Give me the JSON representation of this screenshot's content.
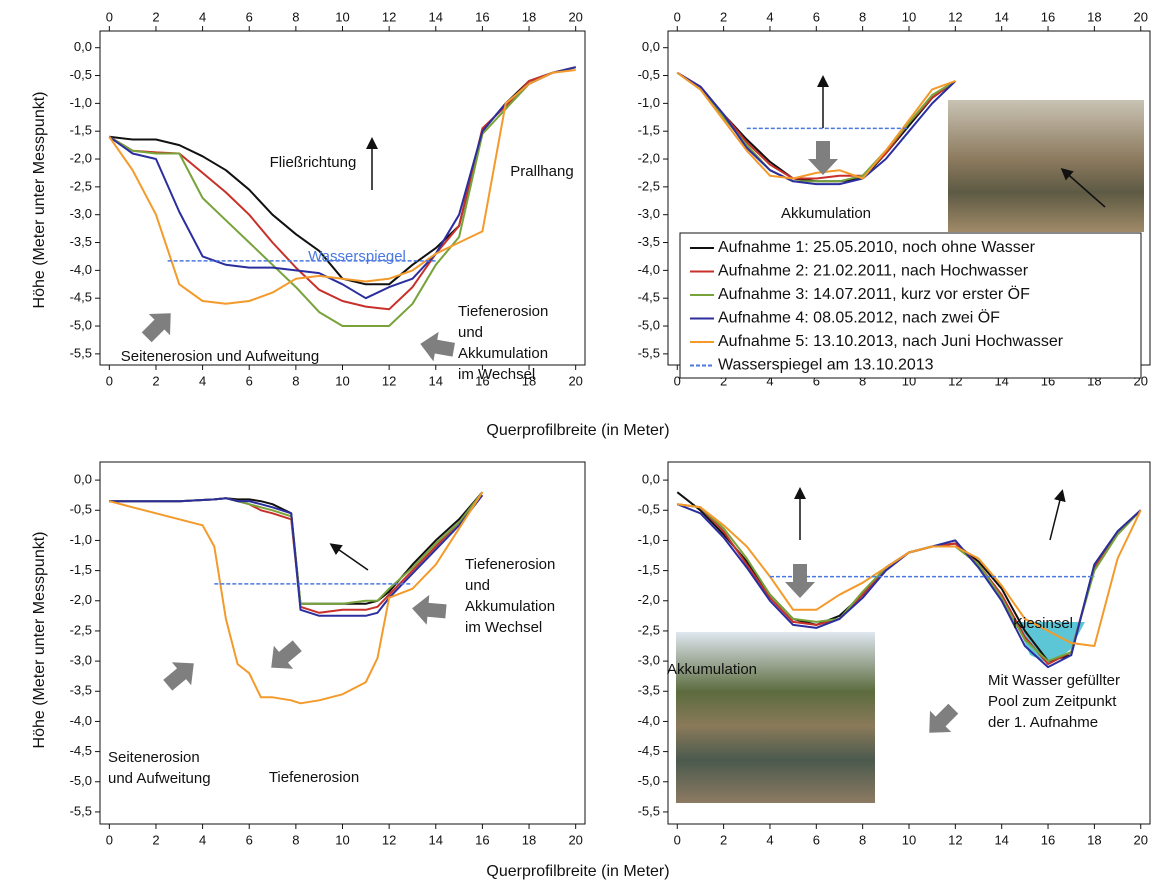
{
  "chart_data": [
    {
      "type": "line",
      "xlabel": "Querprofilbreite (in Meter)",
      "ylabel": "Höhe (Meter unter Messpunkt)",
      "x_axis_top": true,
      "x": [
        0,
        1,
        2,
        3,
        4,
        5,
        6,
        7,
        8,
        9,
        10,
        11,
        12,
        13,
        14,
        15,
        16,
        17,
        18,
        19,
        20
      ],
      "series": [
        {
          "color": "#111111",
          "values": [
            -1.6,
            -1.65,
            -1.65,
            -1.75,
            -1.95,
            -2.2,
            -2.55,
            -3.0,
            -3.35,
            -3.65,
            -4.15,
            -4.25,
            -4.25,
            -3.9,
            -3.6,
            -3.2,
            -1.5,
            -1.0,
            -0.6,
            -0.45,
            -0.35
          ]
        },
        {
          "color": "#c8302a",
          "values": [
            -1.6,
            -1.85,
            -1.88,
            -1.9,
            -2.25,
            -2.6,
            -3.0,
            -3.5,
            -3.95,
            -4.35,
            -4.55,
            -4.65,
            -4.7,
            -4.3,
            -3.7,
            -3.2,
            -1.45,
            -1.05,
            -0.6,
            -0.45,
            -0.35
          ]
        },
        {
          "color": "#77a33a",
          "values": [
            -1.6,
            -1.85,
            -1.9,
            -1.9,
            -2.7,
            -3.1,
            -3.5,
            -3.9,
            -4.3,
            -4.75,
            -5.0,
            -5.0,
            -5.0,
            -4.6,
            -3.9,
            -3.4,
            -1.55,
            -1.1,
            -0.65,
            -0.45,
            -0.35
          ]
        },
        {
          "color": "#2b2e9e",
          "values": [
            -1.6,
            -1.9,
            -2.0,
            -2.95,
            -3.75,
            -3.9,
            -3.95,
            -3.95,
            -4.0,
            -4.05,
            -4.25,
            -4.5,
            -4.3,
            -4.15,
            -3.7,
            -3.0,
            -1.5,
            -1.0,
            -0.65,
            -0.45,
            -0.35
          ]
        },
        {
          "color": "#f39a2b",
          "values": [
            -1.6,
            -2.2,
            -3.0,
            -4.25,
            -4.55,
            -4.6,
            -4.55,
            -4.4,
            -4.15,
            -4.1,
            -4.15,
            -4.2,
            -4.15,
            -4.0,
            -3.7,
            -3.5,
            -3.3,
            -1.0,
            -0.65,
            -0.45,
            -0.4
          ]
        },
        {
          "color": "#4a78e0",
          "dashed": true,
          "x": [
            2.5,
            14
          ],
          "values": [
            -3.83,
            -3.83
          ]
        }
      ],
      "annotations": [
        "Fließrichtung",
        "Prallhang",
        "Wasserspiegel",
        "Seitenerosion und Aufweitung",
        [
          "Tiefenerosion",
          "und",
          "Akkumulation",
          "im Wechsel"
        ]
      ],
      "xlim": [
        -0.4,
        20.4
      ],
      "ylim": [
        -5.7,
        0.3
      ],
      "xticks": [
        0,
        2,
        4,
        6,
        8,
        10,
        12,
        14,
        16,
        18,
        20
      ],
      "yticks": [
        {
          "value": 0,
          "label": "0,0"
        },
        {
          "value": -0.5,
          "label": "-0,5"
        },
        {
          "value": -1,
          "label": "-1,0"
        },
        {
          "value": -1.5,
          "label": "-1,5"
        },
        {
          "value": -2,
          "label": "-2,0"
        },
        {
          "value": -2.5,
          "label": "-2,5"
        },
        {
          "value": -3,
          "label": "-3,0"
        },
        {
          "value": -3.5,
          "label": "-3,5"
        },
        {
          "value": -4,
          "label": "-4,0"
        },
        {
          "value": -4.5,
          "label": "-4,5"
        },
        {
          "value": -5,
          "label": "-5,0"
        },
        {
          "value": -5.5,
          "label": "-5,5"
        }
      ]
    },
    {
      "type": "line",
      "x_axis_top": true,
      "x": [
        0,
        1,
        2,
        3,
        4,
        5,
        6,
        7,
        8,
        9,
        10,
        11,
        12
      ],
      "series": [
        {
          "name": "Aufnahme 1: 25.05.2010, noch ohne Wasser",
          "color": "#111111",
          "values": [
            -0.45,
            -0.7,
            -1.2,
            -1.65,
            -2.05,
            -2.35,
            -2.4,
            -2.4,
            -2.35,
            -1.9,
            -1.4,
            -0.9,
            -0.6
          ]
        },
        {
          "name": "Aufnahme 2: 21.02.2011, nach Hochwasser",
          "color": "#c8302a",
          "values": [
            -0.45,
            -0.7,
            -1.2,
            -1.7,
            -2.1,
            -2.35,
            -2.35,
            -2.3,
            -2.3,
            -1.9,
            -1.35,
            -0.9,
            -0.6
          ]
        },
        {
          "name": "Aufnahme 3: 14.07.2011, kurz vor erster ÖF",
          "color": "#77a33a",
          "values": [
            -0.45,
            -0.75,
            -1.25,
            -1.75,
            -2.2,
            -2.4,
            -2.4,
            -2.4,
            -2.3,
            -1.85,
            -1.35,
            -0.85,
            -0.6
          ]
        },
        {
          "name": "Aufnahme 4: 08.05.2012, nach zwei ÖF",
          "color": "#2b2e9e",
          "values": [
            -0.45,
            -0.7,
            -1.2,
            -1.8,
            -2.2,
            -2.4,
            -2.45,
            -2.45,
            -2.35,
            -2.0,
            -1.5,
            -1.0,
            -0.6
          ]
        },
        {
          "name": "Aufnahme 5: 13.10.2013, nach Juni Hochwasser",
          "color": "#f39a2b",
          "values": [
            -0.45,
            -0.75,
            -1.3,
            -1.85,
            -2.3,
            -2.35,
            -2.25,
            -2.2,
            -2.35,
            -1.85,
            -1.3,
            -0.75,
            -0.6
          ]
        },
        {
          "name": "Wasserspiegel am 13.10.2013",
          "color": "#4a78e0",
          "dashed": true,
          "x": [
            3,
            10
          ],
          "values": [
            -1.45,
            -1.45
          ]
        }
      ],
      "annotations": [
        "Akkumulation"
      ],
      "xlim": [
        -0.4,
        20.4
      ],
      "ylim": [
        -5.7,
        0.3
      ],
      "xticks": [
        0,
        2,
        4,
        6,
        8,
        10,
        12,
        14,
        16,
        18,
        20
      ],
      "yticks": [
        {
          "value": 0,
          "label": "0,0"
        },
        {
          "value": -0.5,
          "label": "-0,5"
        },
        {
          "value": -1,
          "label": "-1,0"
        },
        {
          "value": -1.5,
          "label": "-1,5"
        },
        {
          "value": -2,
          "label": "-2,0"
        },
        {
          "value": -2.5,
          "label": "-2,5"
        },
        {
          "value": -3,
          "label": "-3,0"
        },
        {
          "value": -3.5,
          "label": "-3,5"
        },
        {
          "value": -4,
          "label": "-4,0"
        },
        {
          "value": -4.5,
          "label": "-4,5"
        },
        {
          "value": -5,
          "label": "-5,0"
        },
        {
          "value": -5.5,
          "label": "-5,5"
        }
      ]
    },
    {
      "type": "line",
      "xlabel": "Querprofilbreite (in Meter)",
      "ylabel": "Höhe (Meter unter Messpunkt)",
      "x": [
        0,
        1,
        2,
        3,
        4,
        4.5,
        5,
        5.5,
        6,
        6.5,
        7,
        7.8,
        8.2,
        9,
        10,
        11,
        11.5,
        12,
        13,
        14,
        15,
        16
      ],
      "series": [
        {
          "color": "#111111",
          "values": [
            -0.35,
            -0.35,
            -0.35,
            -0.35,
            -0.33,
            -0.32,
            -0.3,
            -0.32,
            -0.32,
            -0.35,
            -0.4,
            -0.55,
            -2.05,
            -2.05,
            -2.05,
            -2.05,
            -2.0,
            -1.85,
            -1.4,
            -1.0,
            -0.65,
            -0.2
          ]
        },
        {
          "color": "#c8302a",
          "values": [
            -0.35,
            -0.35,
            -0.35,
            -0.35,
            -0.33,
            -0.32,
            -0.3,
            -0.35,
            -0.4,
            -0.5,
            -0.55,
            -0.65,
            -2.1,
            -2.2,
            -2.15,
            -2.15,
            -2.1,
            -1.9,
            -1.5,
            -1.1,
            -0.7,
            -0.2
          ]
        },
        {
          "color": "#77a33a",
          "values": [
            -0.35,
            -0.35,
            -0.35,
            -0.35,
            -0.33,
            -0.32,
            -0.3,
            -0.35,
            -0.4,
            -0.45,
            -0.5,
            -0.6,
            -2.05,
            -2.05,
            -2.05,
            -2.0,
            -2.0,
            -1.8,
            -1.45,
            -1.05,
            -0.7,
            -0.2
          ]
        },
        {
          "color": "#2b2e9e",
          "values": [
            -0.35,
            -0.35,
            -0.35,
            -0.35,
            -0.33,
            -0.32,
            -0.3,
            -0.35,
            -0.35,
            -0.4,
            -0.45,
            -0.55,
            -2.15,
            -2.25,
            -2.25,
            -2.25,
            -2.2,
            -1.95,
            -1.55,
            -1.15,
            -0.75,
            -0.25
          ]
        },
        {
          "color": "#f39a2b",
          "values": [
            -0.35,
            -0.45,
            -0.55,
            -0.65,
            -0.75,
            -1.1,
            -2.3,
            -3.05,
            -3.2,
            -3.6,
            -3.6,
            -3.65,
            -3.7,
            -3.65,
            -3.55,
            -3.35,
            -2.95,
            -1.95,
            -1.8,
            -1.4,
            -0.8,
            -0.2
          ]
        },
        {
          "color": "#4a78e0",
          "dashed": true,
          "x": [
            4.5,
            13
          ],
          "values": [
            -1.72,
            -1.72
          ]
        }
      ],
      "annotations": [
        [
          "Tiefenerosion",
          "und",
          "Akkumulation",
          "im Wechsel"
        ],
        [
          "Seitenerosion",
          "und Aufweitung"
        ],
        "Tiefenerosion"
      ],
      "xlim": [
        -0.4,
        20.4
      ],
      "ylim": [
        -5.7,
        0.3
      ],
      "xticks": [
        0,
        2,
        4,
        6,
        8,
        10,
        12,
        14,
        16,
        18,
        20
      ],
      "yticks": [
        {
          "value": 0,
          "label": "0,0"
        },
        {
          "value": -0.5,
          "label": "-0,5"
        },
        {
          "value": -1,
          "label": "-1,0"
        },
        {
          "value": -1.5,
          "label": "-1,5"
        },
        {
          "value": -2,
          "label": "-2,0"
        },
        {
          "value": -2.5,
          "label": "-2,5"
        },
        {
          "value": -3,
          "label": "-3,0"
        },
        {
          "value": -3.5,
          "label": "-3,5"
        },
        {
          "value": -4,
          "label": "-4,0"
        },
        {
          "value": -4.5,
          "label": "-4,5"
        },
        {
          "value": -5,
          "label": "-5,0"
        },
        {
          "value": -5.5,
          "label": "-5,5"
        }
      ]
    },
    {
      "type": "line",
      "x": [
        0,
        1,
        2,
        3,
        4,
        5,
        6,
        7,
        8,
        9,
        10,
        11,
        12,
        13,
        14,
        15,
        16,
        17,
        18,
        19,
        20
      ],
      "series": [
        {
          "color": "#111111",
          "values": [
            -0.2,
            -0.5,
            -0.9,
            -1.35,
            -1.9,
            -2.3,
            -2.4,
            -2.25,
            -1.9,
            -1.45,
            -1.2,
            -1.1,
            -1.05,
            -1.35,
            -1.8,
            -2.5,
            -3.0,
            -2.9,
            -1.4,
            -0.85,
            -0.5
          ]
        },
        {
          "color": "#c8302a",
          "values": [
            -0.4,
            -0.45,
            -0.85,
            -1.4,
            -1.95,
            -2.35,
            -2.4,
            -2.3,
            -1.9,
            -1.45,
            -1.2,
            -1.1,
            -1.05,
            -1.4,
            -1.9,
            -2.6,
            -3.05,
            -2.85,
            -1.45,
            -0.9,
            -0.5
          ]
        },
        {
          "color": "#77a33a",
          "values": [
            -0.4,
            -0.45,
            -0.8,
            -1.3,
            -1.9,
            -2.3,
            -2.35,
            -2.3,
            -1.85,
            -1.45,
            -1.2,
            -1.1,
            -1.1,
            -1.4,
            -1.95,
            -2.65,
            -3.0,
            -2.85,
            -1.5,
            -0.9,
            -0.5
          ]
        },
        {
          "color": "#2b2e9e",
          "values": [
            -0.4,
            -0.55,
            -0.95,
            -1.45,
            -2.0,
            -2.4,
            -2.45,
            -2.3,
            -1.95,
            -1.5,
            -1.2,
            -1.1,
            -1.0,
            -1.45,
            -2.0,
            -2.75,
            -3.1,
            -2.9,
            -1.4,
            -0.85,
            -0.5
          ]
        },
        {
          "color": "#f39a2b",
          "values": [
            -0.4,
            -0.45,
            -0.75,
            -1.1,
            -1.6,
            -2.15,
            -2.15,
            -1.9,
            -1.7,
            -1.45,
            -1.2,
            -1.1,
            -1.1,
            -1.3,
            -1.75,
            -2.3,
            -2.5,
            -2.7,
            -2.75,
            -1.3,
            -0.5
          ]
        },
        {
          "color": "#4a78e0",
          "dashed": true,
          "x": [
            4,
            18
          ],
          "values": [
            -1.6,
            -1.6
          ]
        }
      ],
      "annotations": [
        "Kiesinsel",
        "Akkumulation",
        [
          "Mit Wasser gefüllter",
          "Pool zum Zeitpunkt",
          "der 1. Aufnahme"
        ]
      ],
      "xlim": [
        -0.4,
        20.4
      ],
      "ylim": [
        -5.7,
        0.3
      ],
      "xticks": [
        0,
        2,
        4,
        6,
        8,
        10,
        12,
        14,
        16,
        18,
        20
      ],
      "yticks": [
        {
          "value": 0,
          "label": "0,0"
        },
        {
          "value": -0.5,
          "label": "-0,5"
        },
        {
          "value": -1,
          "label": "-1,0"
        },
        {
          "value": -1.5,
          "label": "-1,5"
        },
        {
          "value": -2,
          "label": "-2,0"
        },
        {
          "value": -2.5,
          "label": "-2,5"
        },
        {
          "value": -3,
          "label": "-3,0"
        },
        {
          "value": -3.5,
          "label": "-3,5"
        },
        {
          "value": -4,
          "label": "-4,0"
        },
        {
          "value": -4.5,
          "label": "-4,5"
        },
        {
          "value": -5,
          "label": "-5,0"
        },
        {
          "value": -5.5,
          "label": "-5,5"
        }
      ]
    }
  ]
}
